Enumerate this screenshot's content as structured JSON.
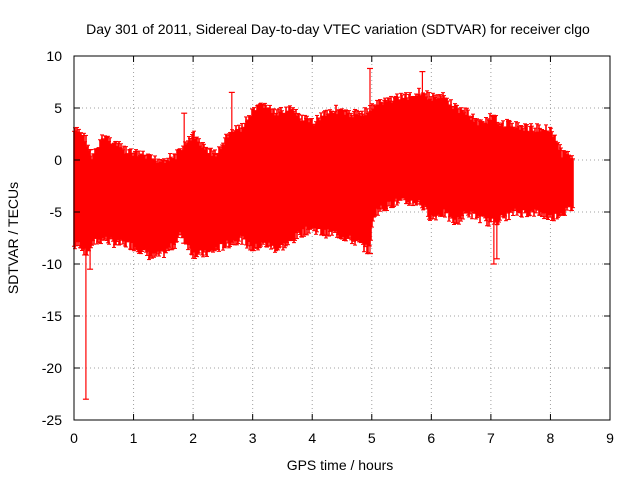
{
  "chart_data": {
    "type": "scatter",
    "title": "Day 301 of 2011, Sidereal Day-to-day VTEC variation (SDTVAR) for receiver clgo",
    "xlabel": "GPS time / hours",
    "ylabel": "SDTVAR / TECUs",
    "xlim": [
      0,
      9
    ],
    "ylim": [
      -25,
      10
    ],
    "x_ticks": [
      0,
      1,
      2,
      3,
      4,
      5,
      6,
      7,
      8,
      9
    ],
    "y_ticks": [
      -25,
      -20,
      -15,
      -10,
      -5,
      0,
      5,
      10
    ],
    "grid": true,
    "series_color": "#ff0000",
    "series": [
      {
        "name": "SDTVAR",
        "style": "errorbars",
        "band_x": [
          0.0,
          0.1,
          0.2,
          0.3,
          0.5,
          0.7,
          0.9,
          1.1,
          1.3,
          1.5,
          1.7,
          1.8,
          1.9,
          2.0,
          2.2,
          2.4,
          2.6,
          2.8,
          3.0,
          3.2,
          3.4,
          3.6,
          3.8,
          4.0,
          4.2,
          4.4,
          4.6,
          4.8,
          4.95,
          5.05,
          5.2,
          5.4,
          5.6,
          5.8,
          6.0,
          6.2,
          6.4,
          6.6,
          6.8,
          7.0,
          7.2,
          7.4,
          7.6,
          7.8,
          8.0,
          8.2,
          8.38
        ],
        "band_upper": [
          3.2,
          3.2,
          2.5,
          0.5,
          2.8,
          2.0,
          1.2,
          1.0,
          0.5,
          0.5,
          0.8,
          1.5,
          2.0,
          3.0,
          1.5,
          1.0,
          3.0,
          3.5,
          5.0,
          5.8,
          4.8,
          5.5,
          4.5,
          4.0,
          5.0,
          5.3,
          4.8,
          5.0,
          5.2,
          5.8,
          6.0,
          6.5,
          6.5,
          7.0,
          6.5,
          6.5,
          5.5,
          5.0,
          4.0,
          4.5,
          4.0,
          3.8,
          3.5,
          3.5,
          3.5,
          1.0,
          1.0
        ],
        "band_lower": [
          -8.8,
          -8.5,
          -9.5,
          -8.5,
          -8.0,
          -8.5,
          -8.5,
          -9.0,
          -9.8,
          -9.5,
          -8.5,
          -7.5,
          -8.5,
          -9.5,
          -9.5,
          -9.0,
          -8.5,
          -8.0,
          -9.0,
          -8.5,
          -9.0,
          -8.5,
          -7.5,
          -7.0,
          -7.5,
          -7.5,
          -8.0,
          -8.5,
          -9.2,
          -5.5,
          -5.0,
          -4.5,
          -4.5,
          -4.5,
          -6.0,
          -5.5,
          -6.5,
          -5.5,
          -6.0,
          -6.5,
          -6.0,
          -5.5,
          -5.5,
          -5.5,
          -6.0,
          -5.5,
          -5.0
        ],
        "spikes": [
          {
            "x": 0.2,
            "low": -23.0,
            "high": 0.0
          },
          {
            "x": 0.27,
            "low": -10.5,
            "high": 1.0
          },
          {
            "x": 1.85,
            "low": -8.0,
            "high": 4.5
          },
          {
            "x": 2.65,
            "low": -7.5,
            "high": 6.5
          },
          {
            "x": 4.97,
            "low": -9.0,
            "high": 8.8
          },
          {
            "x": 5.85,
            "low": -3.0,
            "high": 8.5
          },
          {
            "x": 7.05,
            "low": -10.0,
            "high": 2.0
          },
          {
            "x": 7.1,
            "low": -9.5,
            "high": 1.0
          }
        ]
      }
    ]
  }
}
